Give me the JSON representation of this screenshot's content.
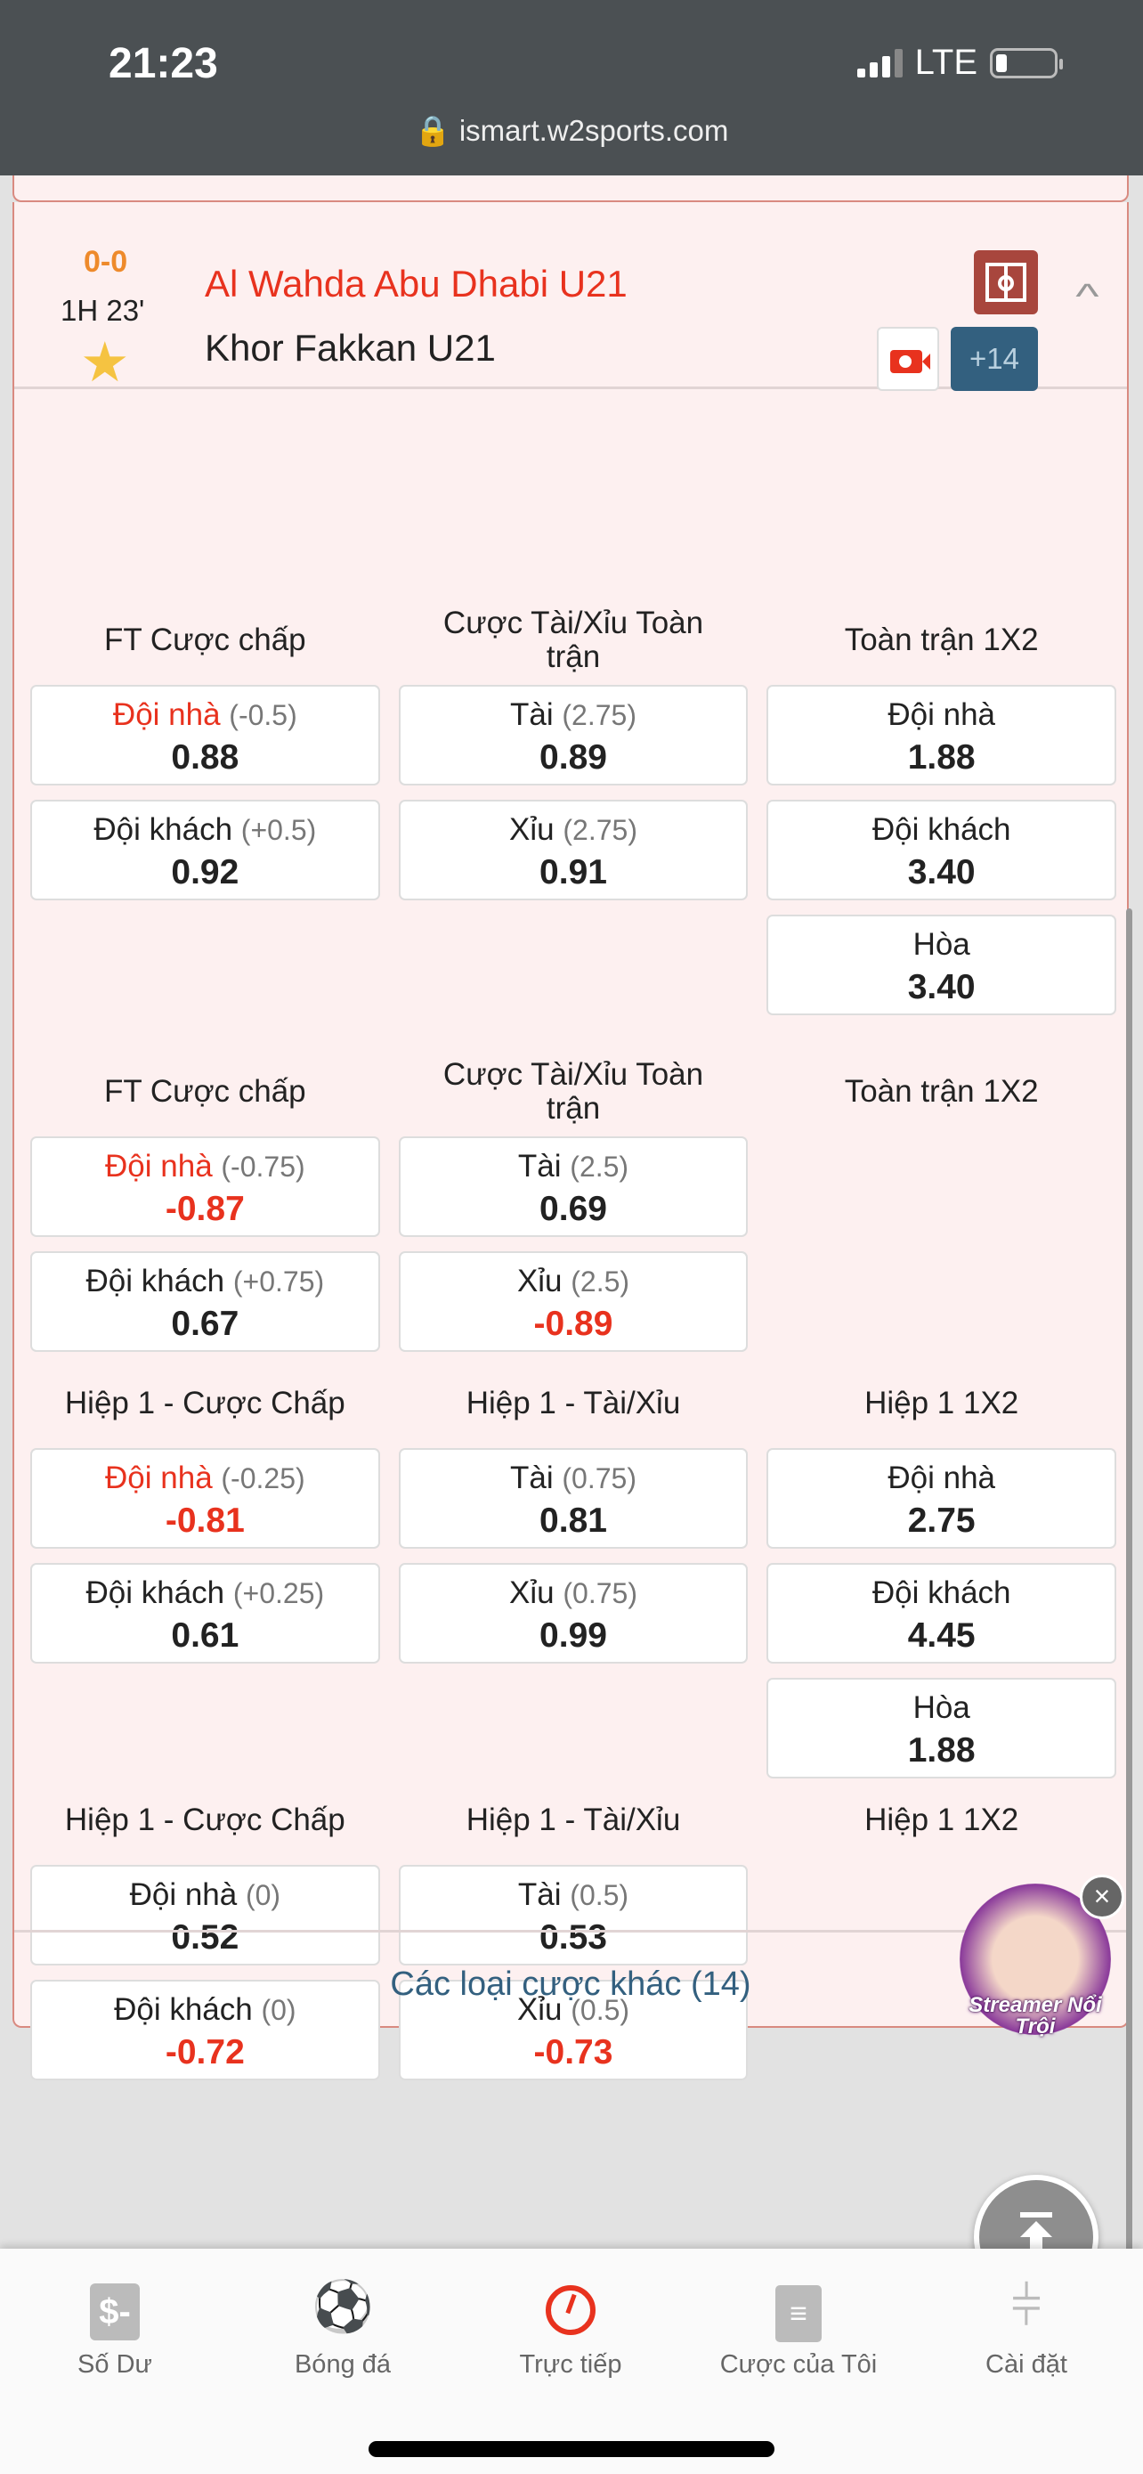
{
  "status_bar": {
    "time": "21:23",
    "network": "LTE"
  },
  "browser": {
    "url": "ismart.w2sports.com"
  },
  "match": {
    "score": "0-0",
    "clock": "1H 23'",
    "home_team": "Al Wahda Abu Dhabi U21",
    "away_team": "Khor Fakkan U21",
    "more_markets": "+14",
    "favorite": true
  },
  "markets": [
    {
      "columns": [
        {
          "title": "FT Cược chấp",
          "options": [
            {
              "label": "Đội nhà",
              "line": "(-0.5)",
              "odds": "0.88",
              "label_red": true
            },
            {
              "label": "Đội khách",
              "line": "(+0.5)",
              "odds": "0.92"
            }
          ]
        },
        {
          "title": "Cược Tài/Xỉu Toàn trận",
          "options": [
            {
              "label": "Tài",
              "line": "(2.75)",
              "odds": "0.89"
            },
            {
              "label": "Xỉu",
              "line": "(2.75)",
              "odds": "0.91"
            }
          ]
        },
        {
          "title": "Toàn trận 1X2",
          "options": [
            {
              "label": "Đội nhà",
              "odds": "1.88"
            },
            {
              "label": "Đội khách",
              "odds": "3.40"
            },
            {
              "label": "Hòa",
              "odds": "3.40"
            }
          ]
        }
      ]
    },
    {
      "columns": [
        {
          "title": "FT Cược chấp",
          "options": [
            {
              "label": "Đội nhà",
              "line": "(-0.75)",
              "odds": "-0.87",
              "label_red": true,
              "odds_red": true
            },
            {
              "label": "Đội khách",
              "line": "(+0.75)",
              "odds": "0.67"
            }
          ]
        },
        {
          "title": "Cược Tài/Xỉu Toàn trận",
          "options": [
            {
              "label": "Tài",
              "line": "(2.5)",
              "odds": "0.69"
            },
            {
              "label": "Xỉu",
              "line": "(2.5)",
              "odds": "-0.89",
              "odds_red": true
            }
          ]
        },
        {
          "title": "Toàn trận 1X2",
          "options": []
        }
      ]
    },
    {
      "columns": [
        {
          "title": "Hiệp 1 - Cược Chấp",
          "options": [
            {
              "label": "Đội nhà",
              "line": "(-0.25)",
              "odds": "-0.81",
              "label_red": true,
              "odds_red": true
            },
            {
              "label": "Đội khách",
              "line": "(+0.25)",
              "odds": "0.61"
            }
          ]
        },
        {
          "title": "Hiệp 1 - Tài/Xỉu",
          "options": [
            {
              "label": "Tài",
              "line": "(0.75)",
              "odds": "0.81"
            },
            {
              "label": "Xỉu",
              "line": "(0.75)",
              "odds": "0.99"
            }
          ]
        },
        {
          "title": "Hiệp 1 1X2",
          "options": [
            {
              "label": "Đội nhà",
              "odds": "2.75"
            },
            {
              "label": "Đội khách",
              "odds": "4.45"
            },
            {
              "label": "Hòa",
              "odds": "1.88"
            }
          ]
        }
      ]
    },
    {
      "columns": [
        {
          "title": "Hiệp 1 - Cược Chấp",
          "options": [
            {
              "label": "Đội nhà",
              "line": "(0)",
              "odds": "0.52"
            },
            {
              "label": "Đội khách",
              "line": "(0)",
              "odds": "-0.72",
              "odds_red": true
            }
          ]
        },
        {
          "title": "Hiệp 1 - Tài/Xỉu",
          "options": [
            {
              "label": "Tài",
              "line": "(0.5)",
              "odds": "0.53"
            },
            {
              "label": "Xỉu",
              "line": "(0.5)",
              "odds": "-0.73",
              "odds_red": true
            }
          ]
        },
        {
          "title": "Hiệp 1 1X2",
          "options": []
        }
      ]
    }
  ],
  "other_bets": "Các loại cược khác (14)",
  "ad": {
    "text": "Streamer Nổi Trội"
  },
  "bottom_nav": [
    {
      "label": "Số Dư",
      "icon": "wallet-icon"
    },
    {
      "label": "Bóng đá",
      "icon": "soccer-ball-icon"
    },
    {
      "label": "Trực tiếp",
      "icon": "live-gauge-icon",
      "active": true
    },
    {
      "label": "Cược của Tôi",
      "icon": "notebook-icon"
    },
    {
      "label": "Cài đặt",
      "icon": "sliders-icon"
    }
  ],
  "colors": {
    "accent_red": "#e8321e",
    "score_orange": "#ee8a2b",
    "link_blue": "#33607f",
    "card_bg": "#fdf0f0"
  }
}
